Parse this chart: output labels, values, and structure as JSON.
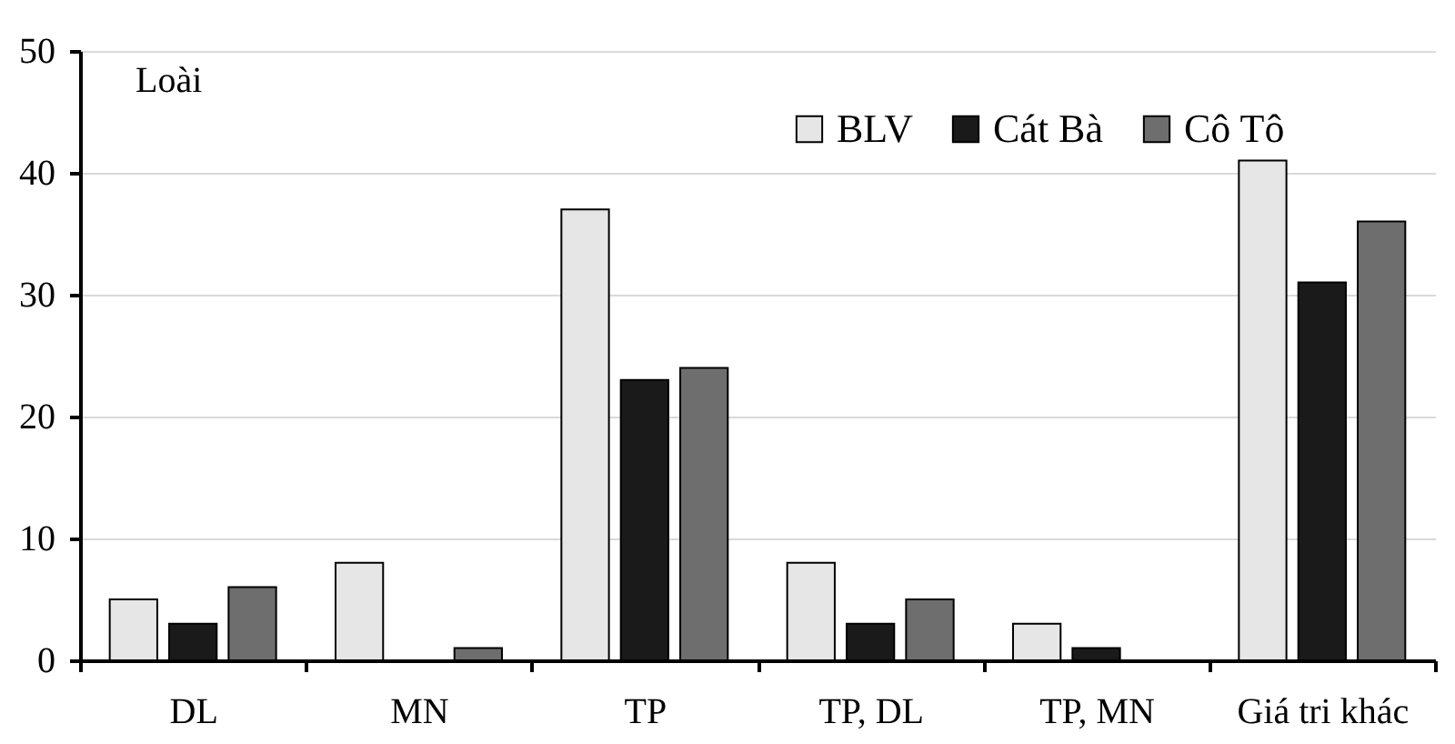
{
  "chart_data": {
    "type": "bar",
    "ylabel": "Loài",
    "categories": [
      "DL",
      "MN",
      "TP",
      "TP, DL",
      "TP, MN",
      "Giá tri khác"
    ],
    "series": [
      {
        "name": "BLV",
        "color": "#e6e6e6",
        "values": [
          5,
          8,
          37,
          8,
          3,
          41
        ]
      },
      {
        "name": "Cát Bà",
        "color": "#1a1a1a",
        "values": [
          3,
          0,
          23,
          3,
          1,
          31
        ]
      },
      {
        "name": "Cô Tô",
        "color": "#6e6e6e",
        "values": [
          6,
          1,
          24,
          5,
          0,
          36
        ]
      }
    ],
    "ylim": [
      0,
      50
    ],
    "yticks": [
      0,
      10,
      20,
      30,
      40,
      50
    ],
    "grid": "y",
    "legend": "top right"
  }
}
